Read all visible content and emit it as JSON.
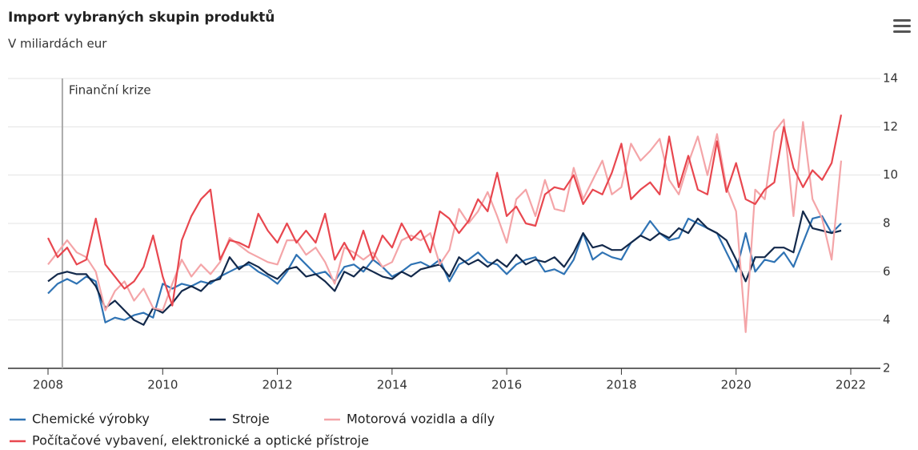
{
  "chart_data": {
    "type": "line",
    "title": "Import vybraných skupin produktů",
    "subtitle": "V miliardách eur",
    "annotation": {
      "text": "Finanční krize",
      "x": 2008.25
    },
    "x": [
      2008,
      2008.167,
      2008.333,
      2008.5,
      2008.667,
      2008.833,
      2009,
      2009.167,
      2009.333,
      2009.5,
      2009.667,
      2009.833,
      2010,
      2010.167,
      2010.333,
      2010.5,
      2010.667,
      2010.833,
      2011,
      2011.167,
      2011.333,
      2011.5,
      2011.667,
      2011.833,
      2012,
      2012.167,
      2012.333,
      2012.5,
      2012.667,
      2012.833,
      2013,
      2013.167,
      2013.333,
      2013.5,
      2013.667,
      2013.833,
      2014,
      2014.167,
      2014.333,
      2014.5,
      2014.667,
      2014.833,
      2015,
      2015.167,
      2015.333,
      2015.5,
      2015.667,
      2015.833,
      2016,
      2016.167,
      2016.333,
      2016.5,
      2016.667,
      2016.833,
      2017,
      2017.167,
      2017.333,
      2017.5,
      2017.667,
      2017.833,
      2018,
      2018.167,
      2018.333,
      2018.5,
      2018.667,
      2018.833,
      2019,
      2019.167,
      2019.333,
      2019.5,
      2019.667,
      2019.833,
      2020,
      2020.167,
      2020.333,
      2020.5,
      2020.667,
      2020.833,
      2021,
      2021.167,
      2021.333,
      2021.5,
      2021.667,
      2021.833
    ],
    "series": [
      {
        "name": "Chemické výrobky",
        "color": "#2f73b4",
        "values": [
          5.1,
          5.5,
          5.7,
          5.5,
          5.8,
          5.6,
          3.9,
          4.1,
          4.0,
          4.2,
          4.3,
          4.1,
          5.5,
          5.3,
          5.5,
          5.4,
          5.6,
          5.5,
          5.8,
          6.0,
          6.2,
          6.3,
          6.0,
          5.8,
          5.5,
          6.0,
          6.7,
          6.3,
          5.9,
          6.0,
          5.6,
          6.2,
          6.3,
          6.0,
          6.5,
          6.2,
          5.8,
          6.0,
          6.3,
          6.4,
          6.2,
          6.5,
          5.6,
          6.3,
          6.5,
          6.8,
          6.4,
          6.3,
          5.9,
          6.3,
          6.5,
          6.6,
          6.0,
          6.1,
          5.9,
          6.5,
          7.6,
          6.5,
          6.8,
          6.6,
          6.5,
          7.2,
          7.5,
          8.1,
          7.6,
          7.3,
          7.4,
          8.2,
          8.0,
          7.8,
          7.6,
          6.8,
          6.0,
          7.6,
          6.0,
          6.5,
          6.4,
          6.8,
          6.2,
          7.2,
          8.2,
          8.3,
          7.6,
          8.0
        ]
      },
      {
        "name": "Stroje",
        "color": "#13294b",
        "values": [
          5.6,
          5.9,
          6.0,
          5.9,
          5.9,
          5.4,
          4.5,
          4.8,
          4.4,
          4.0,
          3.8,
          4.5,
          4.3,
          4.7,
          5.2,
          5.4,
          5.2,
          5.6,
          5.7,
          6.6,
          6.1,
          6.4,
          6.2,
          5.9,
          5.7,
          6.1,
          6.2,
          5.8,
          5.9,
          5.6,
          5.2,
          6.0,
          5.8,
          6.2,
          6.0,
          5.8,
          5.7,
          6.0,
          5.8,
          6.1,
          6.2,
          6.3,
          5.8,
          6.6,
          6.3,
          6.5,
          6.2,
          6.5,
          6.2,
          6.7,
          6.3,
          6.5,
          6.4,
          6.6,
          6.2,
          6.8,
          7.6,
          7.0,
          7.1,
          6.9,
          6.9,
          7.2,
          7.5,
          7.3,
          7.6,
          7.4,
          7.8,
          7.6,
          8.2,
          7.8,
          7.6,
          7.3,
          6.5,
          5.6,
          6.6,
          6.6,
          7.0,
          7.0,
          6.8,
          8.5,
          7.8,
          7.7,
          7.6,
          7.7
        ]
      },
      {
        "name": "Motorová vozidla a díly",
        "color": "#f4a5a8",
        "values": [
          6.3,
          6.8,
          7.3,
          6.8,
          6.6,
          6.0,
          4.4,
          5.2,
          5.6,
          4.8,
          5.3,
          4.5,
          4.4,
          5.5,
          6.5,
          5.8,
          6.3,
          5.9,
          6.4,
          7.4,
          7.1,
          6.8,
          6.6,
          6.4,
          6.3,
          7.3,
          7.3,
          6.7,
          7.0,
          6.4,
          5.5,
          7.0,
          6.8,
          6.5,
          6.8,
          6.2,
          6.4,
          7.3,
          7.5,
          7.3,
          7.6,
          6.3,
          6.9,
          8.6,
          8.0,
          8.5,
          9.3,
          8.3,
          7.2,
          9.0,
          9.4,
          8.3,
          9.8,
          8.6,
          8.5,
          10.3,
          9.0,
          9.8,
          10.6,
          9.2,
          9.5,
          11.3,
          10.6,
          11.0,
          11.5,
          9.8,
          9.2,
          10.5,
          11.6,
          10.0,
          11.7,
          9.5,
          8.5,
          3.5,
          9.4,
          9.0,
          11.8,
          12.3,
          8.3,
          12.2,
          9.0,
          8.2,
          6.5,
          10.6
        ]
      },
      {
        "name": "Počítačové vybavení, elektronické a optické přístroje",
        "color": "#e8474f",
        "values": [
          7.4,
          6.6,
          7.0,
          6.3,
          6.5,
          8.2,
          6.3,
          5.8,
          5.3,
          5.6,
          6.2,
          7.5,
          5.8,
          4.6,
          7.3,
          8.3,
          9.0,
          9.4,
          6.5,
          7.3,
          7.2,
          7.0,
          8.4,
          7.7,
          7.2,
          8.0,
          7.2,
          7.7,
          7.2,
          8.4,
          6.5,
          7.2,
          6.5,
          7.7,
          6.5,
          7.5,
          7.0,
          8.0,
          7.3,
          7.7,
          6.8,
          8.5,
          8.2,
          7.6,
          8.1,
          9.0,
          8.5,
          10.1,
          8.3,
          8.7,
          8.0,
          7.9,
          9.2,
          9.5,
          9.4,
          10.0,
          8.8,
          9.4,
          9.2,
          10.1,
          11.3,
          9.0,
          9.4,
          9.7,
          9.2,
          11.6,
          9.5,
          10.8,
          9.4,
          9.2,
          11.4,
          9.3,
          10.5,
          9.0,
          8.8,
          9.4,
          9.7,
          12.0,
          10.3,
          9.5,
          10.2,
          9.8,
          10.5,
          12.5
        ]
      }
    ],
    "xlim": [
      2008,
      2022
    ],
    "xticks": [
      2008,
      2010,
      2012,
      2014,
      2016,
      2018,
      2020,
      2022
    ],
    "ylim": [
      2,
      14
    ],
    "yticks": [
      2,
      4,
      6,
      8,
      10,
      12,
      14
    ],
    "grid": true
  }
}
